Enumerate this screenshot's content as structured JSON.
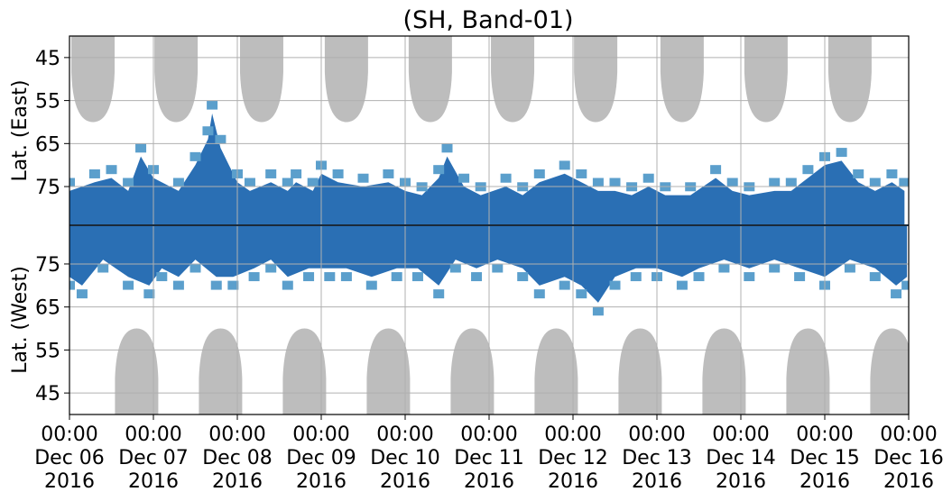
{
  "chart_data": {
    "type": "heatmap",
    "title": "(SH, Band-01)",
    "ylabel_top": "Lat. (East)",
    "ylabel_bottom": "Lat. (West)",
    "y_top_ticks": [
      "45",
      "55",
      "65",
      "75"
    ],
    "y_bottom_ticks": [
      "75",
      "65",
      "55",
      "45"
    ],
    "y_top_tick_values": [
      45,
      55,
      65,
      75
    ],
    "y_bottom_tick_values": [
      75,
      65,
      55,
      45
    ],
    "lat_range": [
      40,
      84
    ],
    "x_range_days": [
      0,
      10
    ],
    "x_ticks": [
      {
        "time": "00:00",
        "date": "Dec 06",
        "year": "2016"
      },
      {
        "time": "00:00",
        "date": "Dec 07",
        "year": "2016"
      },
      {
        "time": "00:00",
        "date": "Dec 08",
        "year": "2016"
      },
      {
        "time": "00:00",
        "date": "Dec 09",
        "year": "2016"
      },
      {
        "time": "00:00",
        "date": "Dec 10",
        "year": "2016"
      },
      {
        "time": "00:00",
        "date": "Dec 11",
        "year": "2016"
      },
      {
        "time": "00:00",
        "date": "Dec 12",
        "year": "2016"
      },
      {
        "time": "00:00",
        "date": "Dec 13",
        "year": "2016"
      },
      {
        "time": "00:00",
        "date": "Dec 14",
        "year": "2016"
      },
      {
        "time": "00:00",
        "date": "Dec 15",
        "year": "2016"
      },
      {
        "time": "00:00",
        "date": "Dec 16",
        "year": "2016"
      }
    ],
    "grid": true,
    "colors": {
      "strong": "#1f67b0",
      "weak": "#5b9fcc",
      "daylight": "#bdbdbd",
      "grid": "#b0b0b0",
      "equator_line": "#1a2a3a"
    },
    "east_daylight_centers_days": [
      0.28,
      1.27,
      2.29,
      3.3,
      4.3,
      5.28,
      6.27,
      7.3,
      8.3,
      9.3
    ],
    "west_daylight_centers_days": [
      0.8,
      1.8,
      2.8,
      3.8,
      4.8,
      5.8,
      6.8,
      7.8,
      8.8,
      9.8
    ],
    "east_activity": [
      {
        "x": 0.0,
        "lat": 76
      },
      {
        "x": 0.3,
        "lat": 74
      },
      {
        "x": 0.5,
        "lat": 73
      },
      {
        "x": 0.7,
        "lat": 76
      },
      {
        "x": 0.85,
        "lat": 68
      },
      {
        "x": 1.0,
        "lat": 73
      },
      {
        "x": 1.3,
        "lat": 76
      },
      {
        "x": 1.5,
        "lat": 70
      },
      {
        "x": 1.65,
        "lat": 64
      },
      {
        "x": 1.7,
        "lat": 58
      },
      {
        "x": 1.8,
        "lat": 66
      },
      {
        "x": 2.0,
        "lat": 74
      },
      {
        "x": 2.15,
        "lat": 76
      },
      {
        "x": 2.4,
        "lat": 74
      },
      {
        "x": 2.6,
        "lat": 76
      },
      {
        "x": 2.7,
        "lat": 74
      },
      {
        "x": 2.9,
        "lat": 76
      },
      {
        "x": 3.0,
        "lat": 72
      },
      {
        "x": 3.2,
        "lat": 74
      },
      {
        "x": 3.5,
        "lat": 75
      },
      {
        "x": 3.8,
        "lat": 74
      },
      {
        "x": 4.0,
        "lat": 76
      },
      {
        "x": 4.2,
        "lat": 77
      },
      {
        "x": 4.4,
        "lat": 73
      },
      {
        "x": 4.5,
        "lat": 68
      },
      {
        "x": 4.7,
        "lat": 75
      },
      {
        "x": 4.9,
        "lat": 77
      },
      {
        "x": 5.2,
        "lat": 75
      },
      {
        "x": 5.4,
        "lat": 77
      },
      {
        "x": 5.6,
        "lat": 74
      },
      {
        "x": 5.9,
        "lat": 72
      },
      {
        "x": 6.1,
        "lat": 74
      },
      {
        "x": 6.3,
        "lat": 76
      },
      {
        "x": 6.5,
        "lat": 76
      },
      {
        "x": 6.7,
        "lat": 77
      },
      {
        "x": 6.9,
        "lat": 75
      },
      {
        "x": 7.1,
        "lat": 77
      },
      {
        "x": 7.4,
        "lat": 77
      },
      {
        "x": 7.7,
        "lat": 73
      },
      {
        "x": 7.9,
        "lat": 76
      },
      {
        "x": 8.1,
        "lat": 77
      },
      {
        "x": 8.4,
        "lat": 76
      },
      {
        "x": 8.6,
        "lat": 76
      },
      {
        "x": 8.8,
        "lat": 73
      },
      {
        "x": 9.0,
        "lat": 70
      },
      {
        "x": 9.2,
        "lat": 69
      },
      {
        "x": 9.4,
        "lat": 74
      },
      {
        "x": 9.6,
        "lat": 76
      },
      {
        "x": 9.8,
        "lat": 74
      },
      {
        "x": 9.95,
        "lat": 76
      }
    ],
    "west_activity": [
      {
        "x": 0.0,
        "lat": 72
      },
      {
        "x": 0.15,
        "lat": 70
      },
      {
        "x": 0.4,
        "lat": 76
      },
      {
        "x": 0.7,
        "lat": 72
      },
      {
        "x": 0.95,
        "lat": 70
      },
      {
        "x": 1.1,
        "lat": 74
      },
      {
        "x": 1.3,
        "lat": 72
      },
      {
        "x": 1.5,
        "lat": 76
      },
      {
        "x": 1.75,
        "lat": 72
      },
      {
        "x": 1.95,
        "lat": 72
      },
      {
        "x": 2.2,
        "lat": 74
      },
      {
        "x": 2.4,
        "lat": 76
      },
      {
        "x": 2.6,
        "lat": 72
      },
      {
        "x": 2.85,
        "lat": 74
      },
      {
        "x": 3.1,
        "lat": 74
      },
      {
        "x": 3.3,
        "lat": 74
      },
      {
        "x": 3.6,
        "lat": 72
      },
      {
        "x": 3.9,
        "lat": 74
      },
      {
        "x": 4.15,
        "lat": 74
      },
      {
        "x": 4.4,
        "lat": 70
      },
      {
        "x": 4.6,
        "lat": 76
      },
      {
        "x": 4.85,
        "lat": 74
      },
      {
        "x": 5.1,
        "lat": 76
      },
      {
        "x": 5.4,
        "lat": 74
      },
      {
        "x": 5.6,
        "lat": 70
      },
      {
        "x": 5.9,
        "lat": 72
      },
      {
        "x": 6.1,
        "lat": 70
      },
      {
        "x": 6.3,
        "lat": 66
      },
      {
        "x": 6.5,
        "lat": 72
      },
      {
        "x": 6.75,
        "lat": 74
      },
      {
        "x": 7.0,
        "lat": 74
      },
      {
        "x": 7.3,
        "lat": 72
      },
      {
        "x": 7.5,
        "lat": 74
      },
      {
        "x": 7.8,
        "lat": 76
      },
      {
        "x": 8.1,
        "lat": 74
      },
      {
        "x": 8.4,
        "lat": 76
      },
      {
        "x": 8.7,
        "lat": 74
      },
      {
        "x": 9.0,
        "lat": 72
      },
      {
        "x": 9.3,
        "lat": 76
      },
      {
        "x": 9.6,
        "lat": 74
      },
      {
        "x": 9.85,
        "lat": 70
      },
      {
        "x": 9.98,
        "lat": 72
      }
    ]
  }
}
